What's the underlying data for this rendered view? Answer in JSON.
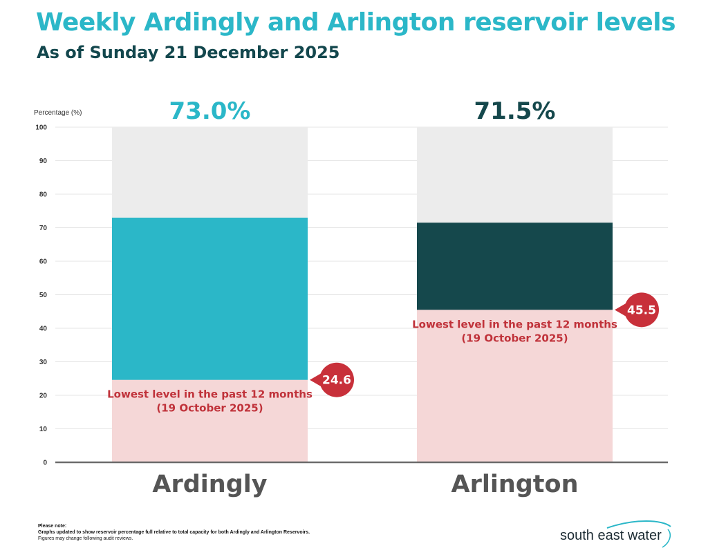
{
  "header": {
    "title": "Weekly Ardingly and Arlington reservoir levels",
    "subtitle": "As of Sunday 21 December 2025"
  },
  "chart_data": {
    "type": "bar",
    "ylabel": "Percentage (%)",
    "ylim": [
      0,
      100
    ],
    "yticks": [
      0,
      10,
      20,
      30,
      40,
      50,
      60,
      70,
      80,
      90,
      100
    ],
    "grid": true,
    "categories": [
      "Ardingly",
      "Arlington"
    ],
    "values": [
      73.0,
      71.5
    ],
    "value_labels": [
      "73.0%",
      "71.5%"
    ],
    "lowest": [
      24.6,
      45.5
    ],
    "lowest_labels": [
      "24.6",
      "45.5"
    ],
    "lowest_text_line1": "Lowest level in the past 12 months",
    "lowest_text_line2": "(19 October 2025)",
    "colors": {
      "bars": [
        "#2bb7c8",
        "#15484c"
      ],
      "value_labels": [
        "#2bb7c8",
        "#15484c"
      ],
      "capacity_bg": "#ececec",
      "lowest_fill": "#f5d7d7",
      "lowest_text": "#c0323a",
      "marker": "#c8303a",
      "axis": "#6b6b6b",
      "grid": "#e4e4e4",
      "category_label": "#555555"
    }
  },
  "footer": {
    "note_heading": "Please note:",
    "note_line1": "Graphs updated to show reservoir percentage full relative to total capacity for both Ardingly and Arlington Reservoirs.",
    "note_line2": "Figures may change following audit reviews.",
    "logo_text": "south east water"
  }
}
